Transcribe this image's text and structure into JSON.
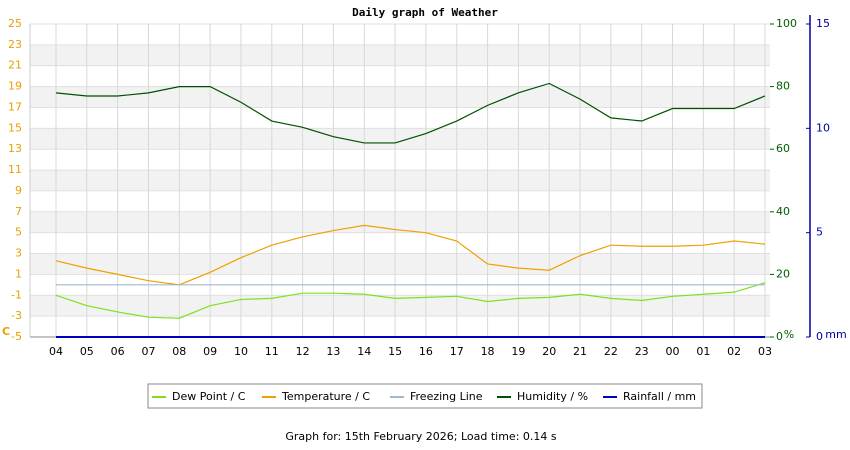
{
  "chart_data": {
    "type": "line",
    "title": "Daily graph of Weather",
    "categories": [
      "04",
      "05",
      "06",
      "07",
      "08",
      "09",
      "10",
      "11",
      "12",
      "13",
      "14",
      "15",
      "16",
      "17",
      "18",
      "19",
      "20",
      "21",
      "22",
      "23",
      "00",
      "01",
      "02",
      "03"
    ],
    "ylim": [
      -5,
      25
    ],
    "yticks": [
      -5,
      -3,
      -1,
      1,
      3,
      5,
      7,
      9,
      11,
      13,
      15,
      17,
      19,
      21,
      23,
      25
    ],
    "y_label": "C",
    "y_color": "#e8a000",
    "y2lim": [
      0,
      100
    ],
    "y2ticks": [
      0,
      20,
      40,
      60,
      80,
      100
    ],
    "y2_label": "%",
    "y2_color": "#006000",
    "y3lim": [
      0,
      15
    ],
    "y3ticks": [
      0,
      5,
      10,
      15
    ],
    "y3_label": "mm",
    "y3_color": "#0000a0",
    "grid": true,
    "series": [
      {
        "name": "Dew Point / C",
        "color": "#80e020",
        "axis": "y",
        "values": [
          -1.0,
          -2.0,
          -2.6,
          -3.1,
          -3.2,
          -2.0,
          -1.4,
          -1.3,
          -0.8,
          -0.8,
          -0.9,
          -1.3,
          -1.2,
          -1.1,
          -1.6,
          -1.3,
          -1.2,
          -0.9,
          -1.3,
          -1.5,
          -1.1,
          -0.9,
          -0.7,
          0.2
        ]
      },
      {
        "name": "Temperature / C",
        "color": "#f0a000",
        "axis": "y",
        "values": [
          2.3,
          1.6,
          1.0,
          0.4,
          0.0,
          1.2,
          2.6,
          3.8,
          4.6,
          5.2,
          5.7,
          5.3,
          5.0,
          4.2,
          2.0,
          1.6,
          1.4,
          2.8,
          3.8,
          3.7,
          3.7,
          3.8,
          4.2,
          3.9
        ]
      },
      {
        "name": "Freezing Line",
        "color": "#a0b8d0",
        "axis": "y",
        "values": [
          0,
          0,
          0,
          0,
          0,
          0,
          0,
          0,
          0,
          0,
          0,
          0,
          0,
          0,
          0,
          0,
          0,
          0,
          0,
          0,
          0,
          0,
          0,
          0
        ]
      },
      {
        "name": "Humidity / %",
        "color": "#005000",
        "axis": "y2",
        "values": [
          78,
          77,
          77,
          78,
          80,
          80,
          75,
          69,
          67,
          64,
          62,
          62,
          65,
          69,
          74,
          78,
          81,
          76,
          70,
          69,
          73,
          73,
          73,
          77
        ]
      },
      {
        "name": "Rainfall / mm",
        "color": "#0000c0",
        "axis": "y3",
        "values": [
          0,
          0,
          0,
          0,
          0,
          0,
          0,
          0,
          0,
          0,
          0,
          0,
          0,
          0,
          0,
          0,
          0,
          0,
          0,
          0,
          0,
          0,
          0,
          0
        ]
      }
    ],
    "footer": "Graph for: 15th February 2026; Load time: 0.14 s"
  }
}
